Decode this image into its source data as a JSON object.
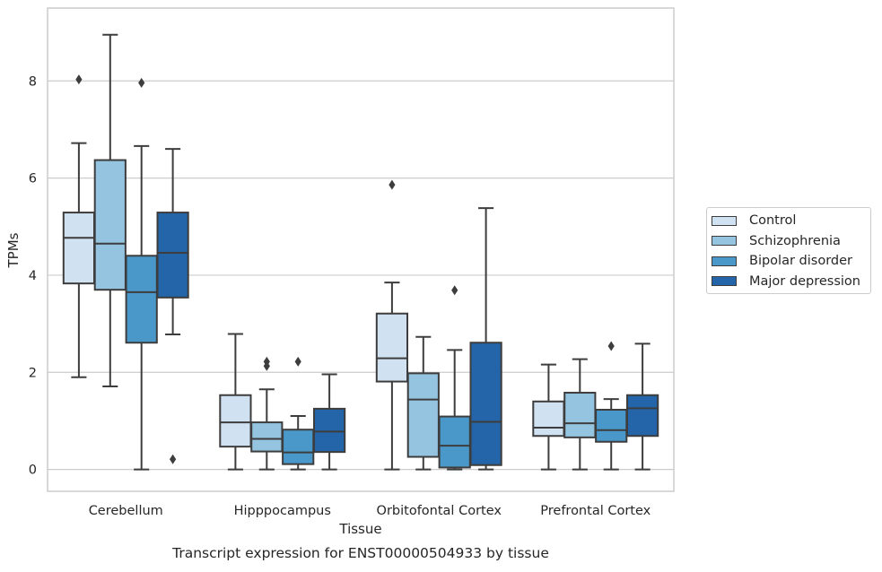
{
  "chart_data": {
    "type": "boxplot",
    "caption": "Transcript expression for ENST00000504933 by tissue",
    "xlabel": "Tissue",
    "ylabel": "TPMs",
    "ylim": [
      -0.45,
      9.5
    ],
    "yticks": [
      0,
      2,
      4,
      6,
      8
    ],
    "grid": "horizontal",
    "legend_position": "right",
    "categories": [
      "Cerebellum",
      "Hipppocampus",
      "Orbitofontal Cortex",
      "Prefrontal Cortex"
    ],
    "series": [
      {
        "name": "Control",
        "color": "#d0e1f2",
        "boxes": [
          {
            "whislo": 1.9,
            "q1": 3.83,
            "med": 4.77,
            "q3": 5.29,
            "whishi": 6.72,
            "fliers": [
              8.03
            ]
          },
          {
            "whislo": 0.0,
            "q1": 0.47,
            "med": 0.97,
            "q3": 1.53,
            "whishi": 2.79,
            "fliers": []
          },
          {
            "whislo": 0.0,
            "q1": 1.81,
            "med": 2.29,
            "q3": 3.21,
            "whishi": 3.85,
            "fliers": [
              5.86
            ]
          },
          {
            "whislo": 0.0,
            "q1": 0.69,
            "med": 0.86,
            "q3": 1.4,
            "whishi": 2.16,
            "fliers": []
          }
        ]
      },
      {
        "name": "Schizophrenia",
        "color": "#94c4df",
        "boxes": [
          {
            "whislo": 1.71,
            "q1": 3.7,
            "med": 4.65,
            "q3": 6.37,
            "whishi": 8.95,
            "fliers": []
          },
          {
            "whislo": 0.0,
            "q1": 0.37,
            "med": 0.63,
            "q3": 0.97,
            "whishi": 1.65,
            "fliers": [
              2.13,
              2.22
            ]
          },
          {
            "whislo": 0.0,
            "q1": 0.26,
            "med": 1.44,
            "q3": 1.98,
            "whishi": 2.73,
            "fliers": []
          },
          {
            "whislo": 0.0,
            "q1": 0.66,
            "med": 0.95,
            "q3": 1.58,
            "whishi": 2.27,
            "fliers": []
          }
        ]
      },
      {
        "name": "Bipolar disorder",
        "color": "#4a98c9",
        "boxes": [
          {
            "whislo": 0.0,
            "q1": 2.61,
            "med": 3.65,
            "q3": 4.4,
            "whishi": 6.66,
            "fliers": [
              7.96
            ]
          },
          {
            "whislo": 0.0,
            "q1": 0.11,
            "med": 0.35,
            "q3": 0.82,
            "whishi": 1.1,
            "fliers": [
              2.22
            ]
          },
          {
            "whislo": 0.0,
            "q1": 0.04,
            "med": 0.49,
            "q3": 1.09,
            "whishi": 2.46,
            "fliers": [
              3.69
            ]
          },
          {
            "whislo": 0.0,
            "q1": 0.57,
            "med": 0.81,
            "q3": 1.23,
            "whishi": 1.45,
            "fliers": [
              2.54
            ]
          }
        ]
      },
      {
        "name": "Major depression",
        "color": "#2365a8",
        "boxes": [
          {
            "whislo": 2.78,
            "q1": 3.54,
            "med": 4.46,
            "q3": 5.29,
            "whishi": 6.6,
            "fliers": [
              0.21
            ]
          },
          {
            "whislo": 0.0,
            "q1": 0.36,
            "med": 0.78,
            "q3": 1.25,
            "whishi": 1.96,
            "fliers": []
          },
          {
            "whislo": 0.0,
            "q1": 0.09,
            "med": 0.98,
            "q3": 2.61,
            "whishi": 5.38,
            "fliers": []
          },
          {
            "whislo": 0.0,
            "q1": 0.69,
            "med": 1.26,
            "q3": 1.53,
            "whishi": 2.59,
            "fliers": []
          }
        ]
      }
    ]
  }
}
